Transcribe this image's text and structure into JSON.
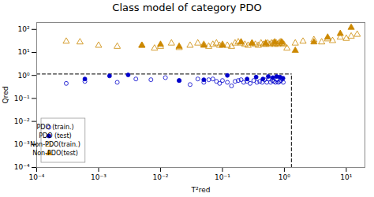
{
  "chart_data": {
    "type": "scatter",
    "title": "Class model of category PDO",
    "xlabel": "T²red",
    "ylabel": "Qred",
    "log": true,
    "grid": false,
    "legend": "lower left",
    "xlim": [
      0.0001,
      20
    ],
    "ylim": [
      0.0001,
      200
    ],
    "xticks": [
      {
        "value": 0.0001,
        "label": "10⁻⁴"
      },
      {
        "value": 0.001,
        "label": "10⁻³"
      },
      {
        "value": 0.01,
        "label": "10⁻²"
      },
      {
        "value": 0.1,
        "label": "10⁻¹"
      },
      {
        "value": 1,
        "label": "10⁰"
      },
      {
        "value": 10,
        "label": "10¹"
      }
    ],
    "yticks": [
      {
        "value": 0.0001,
        "label": "10⁻⁴"
      },
      {
        "value": 0.001,
        "label": "10⁻³"
      },
      {
        "value": 0.01,
        "label": "10⁻²"
      },
      {
        "value": 0.1,
        "label": "10⁻¹"
      },
      {
        "value": 1,
        "label": "10⁰"
      },
      {
        "value": 10,
        "label": "10¹"
      },
      {
        "value": 100,
        "label": "10²"
      }
    ],
    "boundary_lines": {
      "h": 1.15,
      "v": 1.3,
      "line_style": "dashed",
      "color": "#000000"
    },
    "series": [
      {
        "name": "PDO (train.)",
        "color": "#0000CC",
        "marker": "open circle",
        "x": [
          0.0003,
          0.0006,
          0.002,
          0.004,
          0.007,
          0.012,
          0.02,
          0.03,
          0.04,
          0.05,
          0.06,
          0.07,
          0.08,
          0.09,
          0.1,
          0.12,
          0.14,
          0.16,
          0.18,
          0.2,
          0.22,
          0.25,
          0.28,
          0.32,
          0.36,
          0.4,
          0.44,
          0.48,
          0.52,
          0.56,
          0.6,
          0.64,
          0.68,
          0.72,
          0.76,
          0.8,
          0.84,
          0.88,
          0.92,
          0.96
        ],
        "y": [
          0.45,
          0.55,
          0.5,
          0.7,
          0.65,
          0.8,
          0.6,
          0.4,
          0.7,
          0.5,
          0.65,
          0.7,
          0.55,
          0.45,
          0.6,
          0.5,
          0.35,
          0.55,
          0.6,
          0.65,
          0.5,
          0.55,
          0.45,
          0.6,
          0.5,
          0.55,
          0.5,
          0.65,
          0.5,
          0.7,
          0.5,
          0.6,
          0.55,
          0.5,
          0.65,
          0.5,
          0.55,
          0.6,
          0.7,
          0.5
        ]
      },
      {
        "name": "PDO (test)",
        "color": "#0000CC",
        "marker": "filled circle",
        "x": [
          0.0006,
          0.0015,
          0.003,
          0.02,
          0.05,
          0.12,
          0.25,
          0.35,
          0.45,
          0.55,
          0.65,
          0.75,
          0.85,
          0.95
        ],
        "y": [
          0.7,
          0.95,
          1.05,
          0.6,
          0.65,
          1.0,
          0.7,
          0.85,
          0.7,
          0.9,
          0.8,
          0.9,
          0.85,
          0.75
        ]
      },
      {
        "name": "Non-PDO(train.)",
        "color": "#CC8800",
        "marker": "open triangle",
        "x": [
          0.0003,
          0.0005,
          0.001,
          0.002,
          0.005,
          0.008,
          0.01,
          0.015,
          0.02,
          0.03,
          0.04,
          0.05,
          0.06,
          0.07,
          0.08,
          0.09,
          0.1,
          0.12,
          0.14,
          0.16,
          0.18,
          0.2,
          0.23,
          0.26,
          0.3,
          0.34,
          0.38,
          0.42,
          0.46,
          0.5,
          0.54,
          0.58,
          0.62,
          0.66,
          0.7,
          0.74,
          0.78,
          0.82,
          0.86,
          0.9,
          0.94,
          0.98,
          1.1,
          1.5,
          2,
          3,
          4,
          5,
          6,
          8,
          10,
          12,
          15
        ],
        "y": [
          30,
          28,
          20,
          18,
          20,
          15,
          18,
          25,
          16,
          20,
          25,
          22,
          18,
          22,
          25,
          20,
          22,
          20,
          18,
          25,
          28,
          25,
          22,
          20,
          25,
          22,
          20,
          25,
          22,
          22,
          25,
          22,
          25,
          25,
          22,
          25,
          22,
          25,
          28,
          25,
          25,
          22,
          15,
          25,
          30,
          35,
          28,
          38,
          32,
          45,
          40,
          50,
          60
        ]
      },
      {
        "name": "Non-PDO(test)",
        "color": "#CC8800",
        "marker": "filled triangle",
        "x": [
          0.005,
          0.01,
          0.02,
          0.05,
          0.1,
          0.2,
          0.3,
          0.5,
          0.7,
          0.9,
          1.5,
          3,
          5,
          8,
          12
        ],
        "y": [
          20,
          22,
          18,
          20,
          20,
          28,
          25,
          25,
          28,
          28,
          12,
          28,
          45,
          65,
          120
        ]
      }
    ]
  }
}
